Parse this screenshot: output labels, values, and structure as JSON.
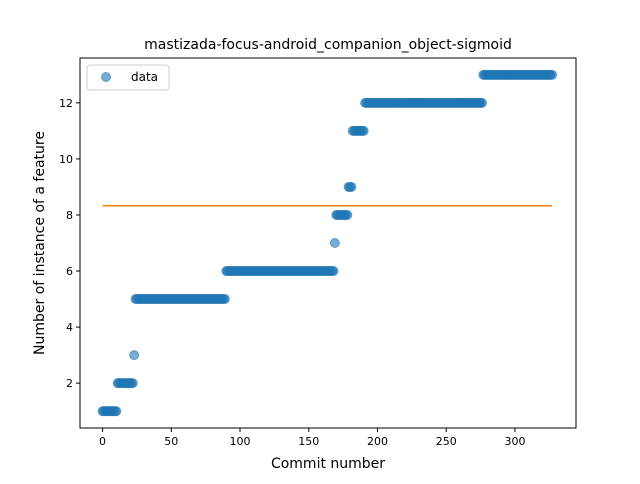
{
  "chart_data": {
    "type": "scatter",
    "title": "mastizada-focus-android_companion_object-sigmoid",
    "xlabel": "Commit number",
    "ylabel": "Number of instance of a feature",
    "xlim": [
      -16.4,
      344.4
    ],
    "ylim": [
      0.4,
      13.6
    ],
    "xticks": [
      0,
      50,
      100,
      150,
      200,
      250,
      300
    ],
    "yticks": [
      2,
      4,
      6,
      8,
      10,
      12
    ],
    "grid": false,
    "legend": {
      "placement": "upper-left",
      "entries": [
        "data"
      ]
    },
    "colors": {
      "data": "#1f77b4",
      "fit": "#ff7f0e"
    },
    "segments": [
      {
        "x_start": 0,
        "x_end": 10,
        "y": 1
      },
      {
        "x_start": 11,
        "x_end": 22,
        "y": 2
      },
      {
        "x_start": 23,
        "x_end": 23,
        "y": 3
      },
      {
        "x_start": 24,
        "x_end": 89,
        "y": 5
      },
      {
        "x_start": 90,
        "x_end": 168,
        "y": 6
      },
      {
        "x_start": 169,
        "x_end": 169,
        "y": 7
      },
      {
        "x_start": 170,
        "x_end": 178,
        "y": 8
      },
      {
        "x_start": 179,
        "x_end": 181,
        "y": 9
      },
      {
        "x_start": 182,
        "x_end": 190,
        "y": 11
      },
      {
        "x_start": 191,
        "x_end": 276,
        "y": 12
      },
      {
        "x_start": 277,
        "x_end": 327,
        "y": 13
      }
    ],
    "fit_line": {
      "x": [
        0,
        327
      ],
      "y": [
        8.33,
        8.33
      ]
    }
  }
}
